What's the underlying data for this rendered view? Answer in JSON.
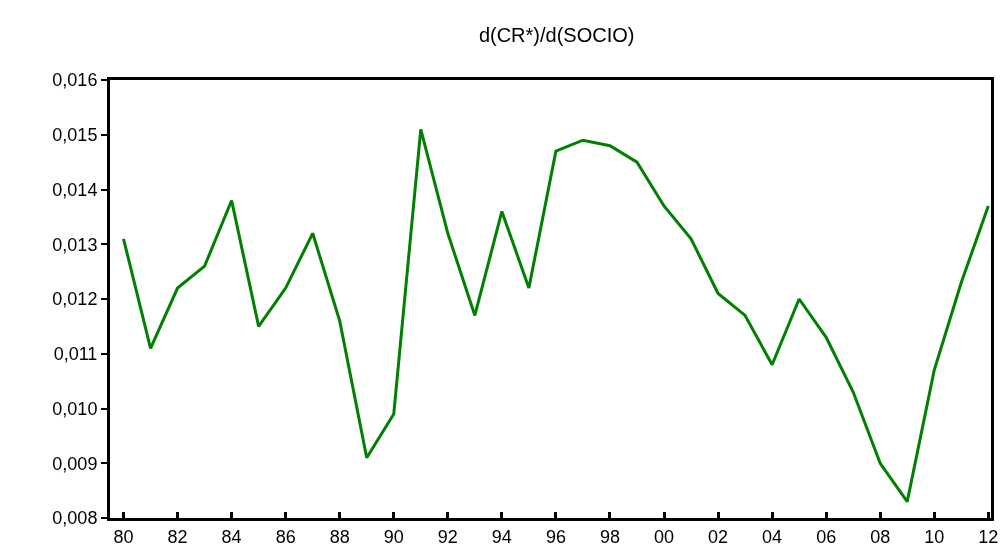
{
  "chart_data": {
    "type": "line",
    "title": "d(CR*)/d(SOCIO)",
    "categories": [
      "80",
      null,
      "82",
      null,
      "84",
      null,
      "86",
      null,
      "88",
      null,
      "90",
      null,
      "92",
      null,
      "94",
      null,
      "96",
      null,
      "98",
      null,
      "00",
      null,
      "02",
      null,
      "04",
      null,
      "06",
      null,
      "08",
      null,
      "10",
      null,
      "12"
    ],
    "series": [
      {
        "color": "#008000",
        "values": [
          0.0131,
          0.0111,
          0.0122,
          0.0126,
          0.0138,
          0.0115,
          0.0122,
          0.0132,
          0.0116,
          0.0091,
          0.0099,
          0.0151,
          0.0132,
          0.0117,
          0.0136,
          0.0122,
          0.0147,
          0.0149,
          0.0148,
          0.0145,
          0.0137,
          0.0131,
          0.0121,
          0.0117,
          0.0108,
          0.012,
          0.0113,
          0.0103,
          0.009,
          0.0083,
          0.0107,
          0.0123,
          0.0137
        ]
      }
    ],
    "ylim": [
      0.008,
      0.016
    ],
    "yticks": [
      {
        "value": 0.008,
        "label": "0,008"
      },
      {
        "value": 0.009,
        "label": "0,009"
      },
      {
        "value": 0.01,
        "label": "0,010"
      },
      {
        "value": 0.011,
        "label": "0,011"
      },
      {
        "value": 0.012,
        "label": "0,012"
      },
      {
        "value": 0.013,
        "label": "0,013"
      },
      {
        "value": 0.014,
        "label": "0,014"
      },
      {
        "value": 0.015,
        "label": "0,015"
      },
      {
        "value": 0.016,
        "label": "0,016"
      }
    ],
    "marker": "none",
    "line_style": "solid"
  }
}
